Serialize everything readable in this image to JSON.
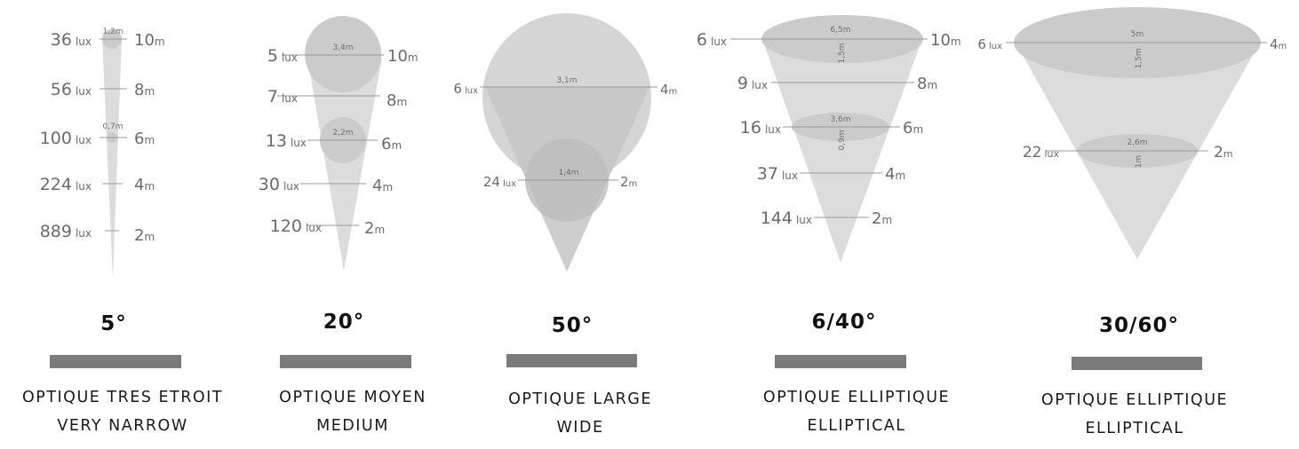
{
  "beams": [
    {
      "angle": "5°",
      "name_fr": "OPTIQUE TRES ETROIT",
      "name_en": "VERY NARROW",
      "rows": [
        {
          "lux": "36",
          "unit": "lux",
          "dist": "10",
          "dunit": "m",
          "diam": "1,2m"
        },
        {
          "lux": "56",
          "unit": "lux",
          "dist": "8",
          "dunit": "m"
        },
        {
          "lux": "100",
          "unit": "lux",
          "dist": "6",
          "dunit": "m",
          "diam": "0,7m"
        },
        {
          "lux": "224",
          "unit": "lux",
          "dist": "4",
          "dunit": "m"
        },
        {
          "lux": "889",
          "unit": "lux",
          "dist": "2",
          "dunit": "m"
        }
      ]
    },
    {
      "angle": "20°",
      "name_fr": "OPTIQUE MOYEN",
      "name_en": "MEDIUM",
      "rows": [
        {
          "lux": "5",
          "unit": "lux",
          "dist": "10",
          "dunit": "m",
          "diam": "3,4m"
        },
        {
          "lux": "7",
          "unit": "lux",
          "dist": "8",
          "dunit": "m"
        },
        {
          "lux": "13",
          "unit": "lux",
          "dist": "6",
          "dunit": "m",
          "diam": "2,2m"
        },
        {
          "lux": "30",
          "unit": "lux",
          "dist": "4",
          "dunit": "m"
        },
        {
          "lux": "120",
          "unit": "lux",
          "dist": "2",
          "dunit": "m"
        }
      ]
    },
    {
      "angle": "50°",
      "name_fr": "OPTIQUE LARGE",
      "name_en": "WIDE",
      "rows": [
        {
          "lux": "6",
          "unit": "lux",
          "dist": "4",
          "dunit": "m",
          "diam": "3,1m"
        },
        {
          "lux": "24",
          "unit": "lux",
          "dist": "2",
          "dunit": "m",
          "diam": "1,4m"
        }
      ]
    },
    {
      "angle": "6/40°",
      "name_fr": "OPTIQUE ELLIPTIQUE",
      "name_en": "ELLIPTICAL",
      "rows": [
        {
          "lux": "6",
          "unit": "lux",
          "dist": "10",
          "dunit": "m",
          "diam": "6,5m",
          "minor": "1,5m"
        },
        {
          "lux": "9",
          "unit": "lux",
          "dist": "8",
          "dunit": "m"
        },
        {
          "lux": "16",
          "unit": "lux",
          "dist": "6",
          "dunit": "m",
          "diam": "3,6m",
          "minor": "0,9m"
        },
        {
          "lux": "37",
          "unit": "lux",
          "dist": "4",
          "dunit": "m"
        },
        {
          "lux": "144",
          "unit": "lux",
          "dist": "2",
          "dunit": "m"
        }
      ]
    },
    {
      "angle": "30/60°",
      "name_fr": "OPTIQUE ELLIPTIQUE",
      "name_en": "ELLIPTICAL",
      "rows": [
        {
          "lux": "6",
          "unit": "lux",
          "dist": "4",
          "dunit": "m",
          "diam": "5m",
          "minor": "1,5m"
        },
        {
          "lux": "22",
          "unit": "lux",
          "dist": "2",
          "dunit": "m",
          "diam": "2,6m",
          "minor": "1m"
        }
      ]
    }
  ],
  "colors": {
    "cone": "#dcdcdc",
    "spot": "#cbcbcb",
    "line": "#9a9a9a",
    "bar": "#7b7b7b",
    "text": "#6b6b6b"
  }
}
